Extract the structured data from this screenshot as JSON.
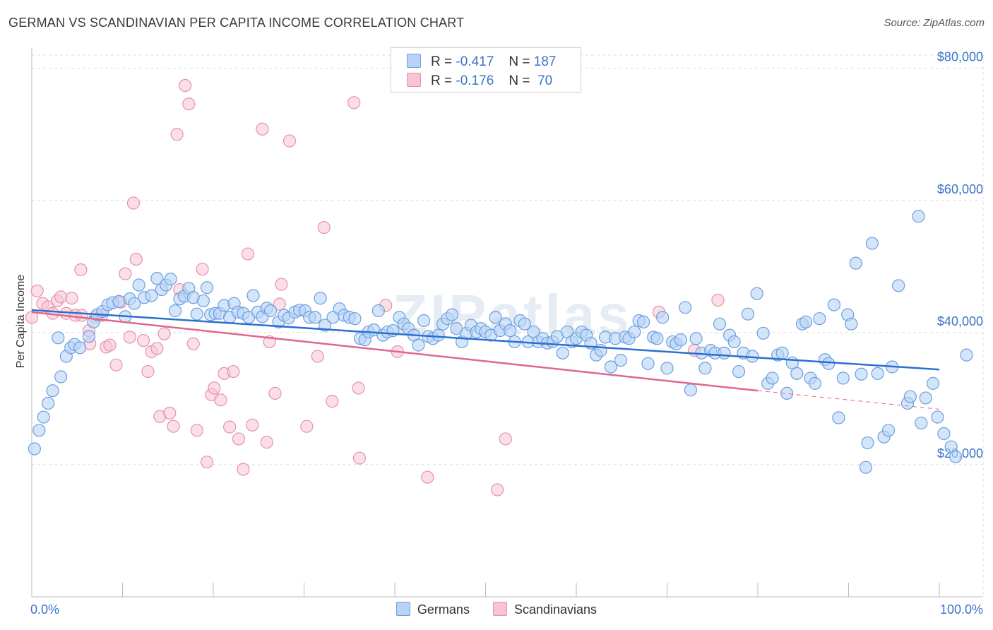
{
  "title": "GERMAN VS SCANDINAVIAN PER CAPITA INCOME CORRELATION CHART",
  "source": "Source: ZipAtlas.com",
  "watermark": "ZIPatlas",
  "legend": {
    "rows": [
      {
        "r_label": "R =",
        "r_value": "-0.417",
        "n_label": "N =",
        "n_value": "187"
      },
      {
        "r_label": "R =",
        "r_value": "-0.176",
        "n_label": "N =",
        "n_value": "70"
      }
    ]
  },
  "colors": {
    "germans_fill": "#b8d3f5",
    "germans_stroke": "#6a9fe0",
    "germans_line": "#2b6fd0",
    "scand_fill": "#f8c4d4",
    "scand_stroke": "#e890ac",
    "scand_line": "#e0668f",
    "grid": "#dddddd",
    "tick_label": "#3b74c9"
  },
  "chart_data": {
    "type": "scatter",
    "title": "GERMAN VS SCANDINAVIAN PER CAPITA INCOME CORRELATION CHART",
    "xlabel": "",
    "ylabel": "Per Capita Income",
    "xlim": [
      0,
      100
    ],
    "ylim": [
      0,
      82000
    ],
    "x_tick_labels": [
      "0.0%",
      "100.0%"
    ],
    "y_ticks": [
      20000,
      40000,
      60000,
      80000
    ],
    "y_tick_labels": [
      "$20,000",
      "$40,000",
      "$60,000",
      "$80,000"
    ],
    "grid": true,
    "legend_position": "bottom",
    "series": [
      {
        "name": "Germans",
        "r": -0.417,
        "n": 187,
        "trend": {
          "x": [
            0,
            100
          ],
          "y": [
            43400,
            34400
          ]
        },
        "points": [
          [
            0.3,
            22400
          ],
          [
            0.8,
            25200
          ],
          [
            1.3,
            27200
          ],
          [
            1.8,
            29300
          ],
          [
            2.3,
            31200
          ],
          [
            3.2,
            33300
          ],
          [
            2.9,
            39200
          ],
          [
            3.8,
            36400
          ],
          [
            4.3,
            37700
          ],
          [
            4.7,
            38200
          ],
          [
            5.3,
            37700
          ],
          [
            6.3,
            39400
          ],
          [
            6.8,
            41600
          ],
          [
            7.2,
            42700
          ],
          [
            7.8,
            43200
          ],
          [
            8.4,
            44200
          ],
          [
            8.9,
            44500
          ],
          [
            9.6,
            44700
          ],
          [
            10.3,
            42400
          ],
          [
            10.8,
            45100
          ],
          [
            11.3,
            44400
          ],
          [
            11.8,
            47200
          ],
          [
            12.4,
            45300
          ],
          [
            13.2,
            45600
          ],
          [
            13.8,
            48200
          ],
          [
            14.3,
            46500
          ],
          [
            14.8,
            47200
          ],
          [
            15.3,
            48100
          ],
          [
            15.8,
            43300
          ],
          [
            16.3,
            45100
          ],
          [
            16.8,
            45500
          ],
          [
            17.3,
            46700
          ],
          [
            17.8,
            45300
          ],
          [
            18.2,
            42800
          ],
          [
            18.9,
            44800
          ],
          [
            19.3,
            46800
          ],
          [
            19.7,
            42700
          ],
          [
            20.2,
            42900
          ],
          [
            20.7,
            42900
          ],
          [
            21.2,
            44100
          ],
          [
            21.8,
            42300
          ],
          [
            22.3,
            44400
          ],
          [
            22.7,
            43100
          ],
          [
            23.3,
            42900
          ],
          [
            23.9,
            42300
          ],
          [
            24.4,
            45600
          ],
          [
            24.9,
            43100
          ],
          [
            25.4,
            42400
          ],
          [
            25.9,
            43700
          ],
          [
            26.3,
            43300
          ],
          [
            27.2,
            41600
          ],
          [
            27.8,
            42600
          ],
          [
            28.3,
            42200
          ],
          [
            29.0,
            43100
          ],
          [
            29.5,
            43400
          ],
          [
            30.1,
            43300
          ],
          [
            30.6,
            42300
          ],
          [
            31.2,
            42300
          ],
          [
            31.8,
            45200
          ],
          [
            32.3,
            41100
          ],
          [
            33.2,
            42300
          ],
          [
            33.9,
            43600
          ],
          [
            34.4,
            42600
          ],
          [
            35.0,
            42300
          ],
          [
            35.6,
            42100
          ],
          [
            36.2,
            39100
          ],
          [
            36.7,
            38900
          ],
          [
            37.1,
            40100
          ],
          [
            37.7,
            40400
          ],
          [
            38.2,
            43300
          ],
          [
            38.7,
            39600
          ],
          [
            39.2,
            40100
          ],
          [
            39.8,
            40300
          ],
          [
            40.5,
            42300
          ],
          [
            41.0,
            41300
          ],
          [
            41.5,
            40600
          ],
          [
            42.1,
            39600
          ],
          [
            42.6,
            38100
          ],
          [
            43.2,
            41800
          ],
          [
            43.7,
            39400
          ],
          [
            44.2,
            39100
          ],
          [
            44.8,
            39600
          ],
          [
            45.3,
            41300
          ],
          [
            45.8,
            42100
          ],
          [
            46.3,
            42700
          ],
          [
            46.8,
            40600
          ],
          [
            47.4,
            38600
          ],
          [
            47.9,
            39900
          ],
          [
            48.4,
            41100
          ],
          [
            49.0,
            40100
          ],
          [
            49.5,
            40600
          ],
          [
            50.0,
            40100
          ],
          [
            50.6,
            39600
          ],
          [
            51.1,
            42300
          ],
          [
            51.6,
            40300
          ],
          [
            52.2,
            41300
          ],
          [
            52.7,
            40300
          ],
          [
            53.2,
            38600
          ],
          [
            53.8,
            41800
          ],
          [
            54.3,
            41300
          ],
          [
            54.7,
            38600
          ],
          [
            55.3,
            40100
          ],
          [
            55.8,
            38600
          ],
          [
            56.3,
            39100
          ],
          [
            56.8,
            38400
          ],
          [
            57.4,
            38600
          ],
          [
            57.9,
            39400
          ],
          [
            58.5,
            36900
          ],
          [
            59.0,
            40100
          ],
          [
            59.5,
            38600
          ],
          [
            60.0,
            39100
          ],
          [
            60.6,
            40100
          ],
          [
            61.1,
            39600
          ],
          [
            61.6,
            38400
          ],
          [
            62.2,
            36600
          ],
          [
            62.7,
            37300
          ],
          [
            63.2,
            39300
          ],
          [
            63.8,
            34800
          ],
          [
            64.3,
            39100
          ],
          [
            64.9,
            35800
          ],
          [
            65.4,
            39300
          ],
          [
            65.8,
            39100
          ],
          [
            66.4,
            40100
          ],
          [
            66.9,
            41800
          ],
          [
            67.4,
            41600
          ],
          [
            67.9,
            35300
          ],
          [
            68.5,
            39300
          ],
          [
            68.9,
            39100
          ],
          [
            69.5,
            42300
          ],
          [
            70.0,
            34600
          ],
          [
            70.6,
            38600
          ],
          [
            71.0,
            38300
          ],
          [
            71.5,
            38900
          ],
          [
            72.0,
            43800
          ],
          [
            72.6,
            31300
          ],
          [
            73.2,
            39100
          ],
          [
            73.8,
            36900
          ],
          [
            74.2,
            34600
          ],
          [
            74.8,
            37300
          ],
          [
            75.3,
            36900
          ],
          [
            75.8,
            41300
          ],
          [
            76.3,
            36900
          ],
          [
            76.9,
            39600
          ],
          [
            77.4,
            38600
          ],
          [
            77.9,
            34100
          ],
          [
            78.4,
            36900
          ],
          [
            78.9,
            42800
          ],
          [
            79.4,
            36400
          ],
          [
            79.9,
            45900
          ],
          [
            80.6,
            39900
          ],
          [
            81.1,
            32300
          ],
          [
            81.6,
            33100
          ],
          [
            82.2,
            36600
          ],
          [
            82.7,
            36900
          ],
          [
            83.2,
            30800
          ],
          [
            83.8,
            35400
          ],
          [
            84.3,
            33800
          ],
          [
            84.9,
            41300
          ],
          [
            85.3,
            41600
          ],
          [
            85.8,
            33100
          ],
          [
            86.3,
            32300
          ],
          [
            86.8,
            42100
          ],
          [
            87.4,
            35900
          ],
          [
            87.8,
            35300
          ],
          [
            88.4,
            44200
          ],
          [
            88.9,
            27100
          ],
          [
            89.4,
            33100
          ],
          [
            89.9,
            42700
          ],
          [
            90.3,
            41300
          ],
          [
            90.8,
            50500
          ],
          [
            91.4,
            33700
          ],
          [
            91.9,
            19600
          ],
          [
            92.1,
            23300
          ],
          [
            92.6,
            53500
          ],
          [
            93.2,
            33800
          ],
          [
            93.9,
            24200
          ],
          [
            94.4,
            25200
          ],
          [
            94.8,
            34800
          ],
          [
            95.5,
            47100
          ],
          [
            96.5,
            29300
          ],
          [
            96.8,
            30300
          ],
          [
            97.7,
            57600
          ],
          [
            98.0,
            26300
          ],
          [
            98.5,
            30100
          ],
          [
            99.3,
            32300
          ],
          [
            99.8,
            27200
          ],
          [
            100.5,
            24700
          ],
          [
            101.3,
            22700
          ],
          [
            101.8,
            21200
          ],
          [
            103.0,
            36600
          ]
        ]
      },
      {
        "name": "Scandinavians",
        "r": -0.176,
        "n": 70,
        "trend": {
          "x": [
            0,
            80
          ],
          "y": [
            43100,
            31200
          ]
        },
        "trend_dashed_extension": {
          "x": [
            80,
            100
          ],
          "y": [
            31200,
            28400
          ]
        },
        "points": [
          [
            0.0,
            42300
          ],
          [
            0.6,
            46300
          ],
          [
            1.2,
            44400
          ],
          [
            1.8,
            43900
          ],
          [
            2.3,
            42900
          ],
          [
            2.8,
            44800
          ],
          [
            3.2,
            45400
          ],
          [
            3.8,
            42900
          ],
          [
            4.4,
            45200
          ],
          [
            4.8,
            42600
          ],
          [
            5.5,
            42600
          ],
          [
            5.4,
            49500
          ],
          [
            6.3,
            40300
          ],
          [
            6.4,
            38300
          ],
          [
            7.0,
            42300
          ],
          [
            7.7,
            42600
          ],
          [
            8.2,
            37800
          ],
          [
            8.6,
            38100
          ],
          [
            9.3,
            35100
          ],
          [
            9.8,
            44600
          ],
          [
            10.3,
            48900
          ],
          [
            10.8,
            39300
          ],
          [
            11.2,
            59600
          ],
          [
            11.5,
            51100
          ],
          [
            12.3,
            38800
          ],
          [
            12.8,
            34100
          ],
          [
            13.2,
            37100
          ],
          [
            13.8,
            37600
          ],
          [
            14.1,
            27300
          ],
          [
            14.6,
            39800
          ],
          [
            15.2,
            27800
          ],
          [
            15.6,
            25800
          ],
          [
            16.0,
            70000
          ],
          [
            16.3,
            46500
          ],
          [
            16.9,
            77400
          ],
          [
            17.3,
            74600
          ],
          [
            17.8,
            38300
          ],
          [
            18.2,
            25200
          ],
          [
            18.8,
            49600
          ],
          [
            19.3,
            20400
          ],
          [
            19.8,
            30600
          ],
          [
            20.1,
            31600
          ],
          [
            20.8,
            29800
          ],
          [
            21.2,
            33800
          ],
          [
            21.8,
            25700
          ],
          [
            22.2,
            34100
          ],
          [
            22.8,
            23900
          ],
          [
            23.3,
            19300
          ],
          [
            23.8,
            51900
          ],
          [
            24.3,
            26000
          ],
          [
            25.4,
            70800
          ],
          [
            25.9,
            23400
          ],
          [
            26.2,
            38600
          ],
          [
            26.8,
            30800
          ],
          [
            27.3,
            44300
          ],
          [
            27.5,
            47300
          ],
          [
            28.4,
            69000
          ],
          [
            30.3,
            25800
          ],
          [
            31.5,
            36400
          ],
          [
            32.2,
            55900
          ],
          [
            33.1,
            29600
          ],
          [
            35.5,
            74800
          ],
          [
            36.0,
            31600
          ],
          [
            36.1,
            21000
          ],
          [
            39.0,
            44100
          ],
          [
            40.3,
            37100
          ],
          [
            43.6,
            18100
          ],
          [
            51.3,
            16200
          ],
          [
            52.2,
            23900
          ],
          [
            69.1,
            43100
          ],
          [
            73.0,
            37300
          ],
          [
            75.6,
            44900
          ]
        ]
      }
    ]
  }
}
